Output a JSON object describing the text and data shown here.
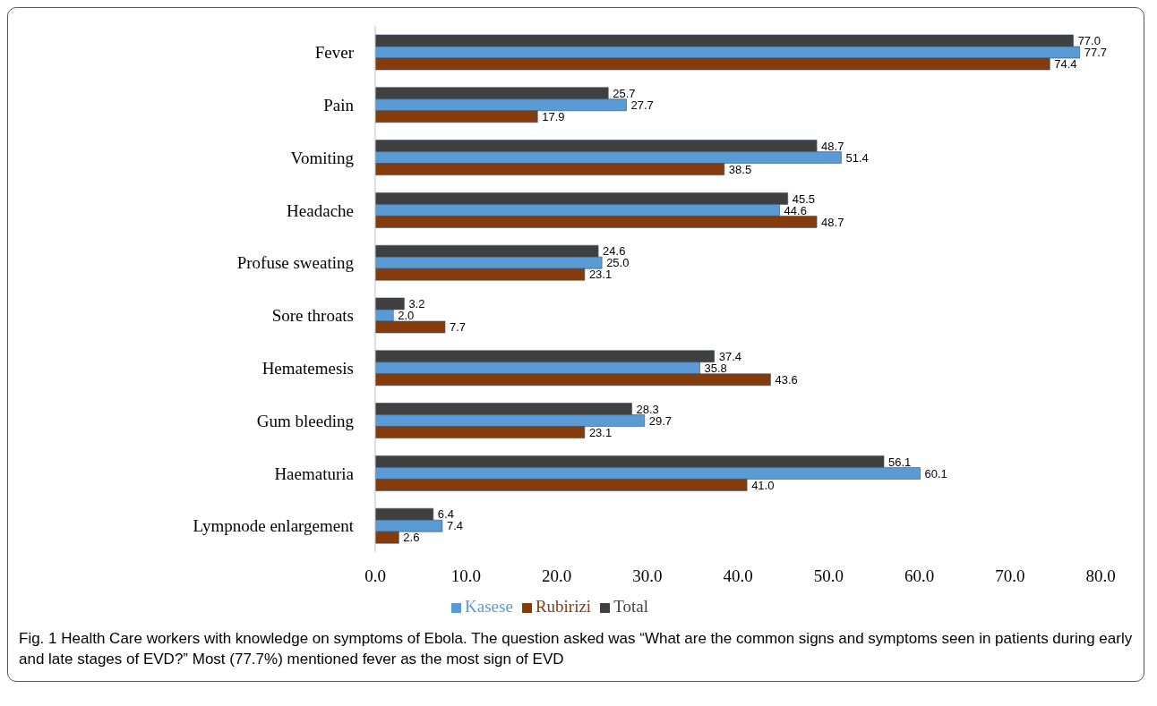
{
  "chart_data": {
    "type": "bar",
    "orientation": "horizontal",
    "categories": [
      "Fever",
      "Pain",
      "Vomiting",
      "Headache",
      "Profuse sweating",
      "Sore throats",
      "Hematemesis",
      "Gum bleeding",
      "Haematuria",
      "Lympnode enlargement"
    ],
    "series": [
      {
        "name": "Total",
        "color": "#404040",
        "values": [
          77.0,
          25.7,
          48.7,
          45.5,
          24.6,
          3.2,
          37.4,
          28.3,
          56.1,
          6.4
        ],
        "value_labels": [
          "77.0",
          "25.7",
          "48.7",
          "45.5",
          "24.6",
          "3.2",
          "37.4",
          "28.3",
          "56.1",
          "6.4"
        ]
      },
      {
        "name": "Kasese",
        "color": "#5b9bd5",
        "values": [
          77.7,
          27.7,
          51.4,
          44.6,
          25.0,
          2.0,
          35.8,
          29.7,
          60.1,
          7.4
        ],
        "value_labels": [
          "77.7",
          "27.7",
          "51.4",
          "44.6",
          "25.0",
          "2.0",
          "35.8",
          "29.7",
          "60.1",
          "7.4"
        ]
      },
      {
        "name": "Rubirizi",
        "color": "#843c0c",
        "values": [
          74.4,
          17.9,
          38.5,
          48.7,
          23.1,
          7.7,
          43.6,
          23.1,
          41.0,
          2.6
        ],
        "value_labels": [
          "74.4",
          "17.9",
          "38.5",
          "48.7",
          "23.1",
          "7.7",
          "43.6",
          "23.1",
          "41.0",
          "2.6"
        ]
      }
    ],
    "xlim": [
      0,
      80
    ],
    "xticks": [
      {
        "value": 0,
        "label": "0.0"
      },
      {
        "value": 10,
        "label": "10.0"
      },
      {
        "value": 20,
        "label": "20.0"
      },
      {
        "value": 30,
        "label": "30.0"
      },
      {
        "value": 40,
        "label": "40.0"
      },
      {
        "value": 50,
        "label": "50.0"
      },
      {
        "value": 60,
        "label": "60.0"
      },
      {
        "value": 70,
        "label": "70.0"
      },
      {
        "value": 80,
        "label": "80.0"
      }
    ],
    "grid": false,
    "legend": "bottom",
    "annotations": [
      "Fig. 1 Health Care workers with knowledge on symptoms of Ebola. The question asked was “What are the common signs and symptoms seen in patients during early and late stages of EVD?” Most (77.7%) mentioned fever as the most sign of EVD"
    ]
  }
}
